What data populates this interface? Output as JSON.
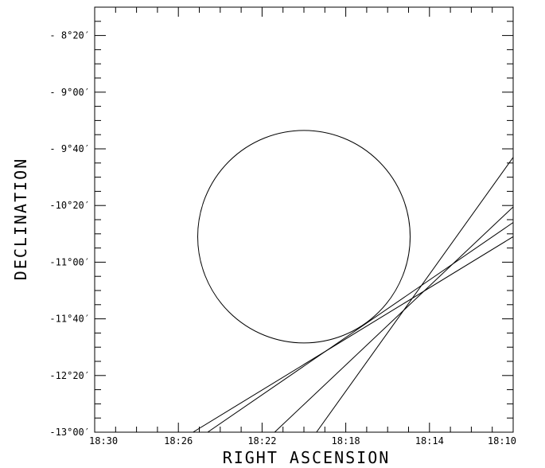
{
  "chart_data": {
    "type": "line",
    "title": "",
    "xlabel": "RIGHT ASCENSION",
    "ylabel": "DECLINATION",
    "x_axis_direction": "decreasing to the right",
    "xlim": [
      "18:30",
      "18:10"
    ],
    "ylim": [
      "-13°00′",
      "-8°00′"
    ],
    "x_ticks": [
      "18:30",
      "18:26",
      "18:22",
      "18:18",
      "18:14",
      "18:10"
    ],
    "y_ticks": [
      "-13°00′",
      "-12°20′",
      "-11°40′",
      "-11°00′",
      "-10°20′",
      "-9°40′",
      "-9°00′",
      "-8°20′"
    ],
    "grid": false,
    "circle": {
      "center": [
        "18:20.0",
        "-10°42′"
      ],
      "radius_deg": 1.25
    },
    "lines": [
      {
        "start": [
          "18:25.3",
          "-13°00′"
        ],
        "end": [
          "18:10.0",
          "-10°42′"
        ]
      },
      {
        "start": [
          "18:24.6",
          "-13°00′"
        ],
        "end": [
          "18:10.0",
          "-10°32′"
        ]
      },
      {
        "start": [
          "18:21.4",
          "-13°00′"
        ],
        "end": [
          "18:10.0",
          "-10°21′"
        ]
      },
      {
        "start": [
          "18:19.4",
          "-13°00′"
        ],
        "end": [
          "18:10.0",
          "-9°46′"
        ]
      }
    ]
  }
}
